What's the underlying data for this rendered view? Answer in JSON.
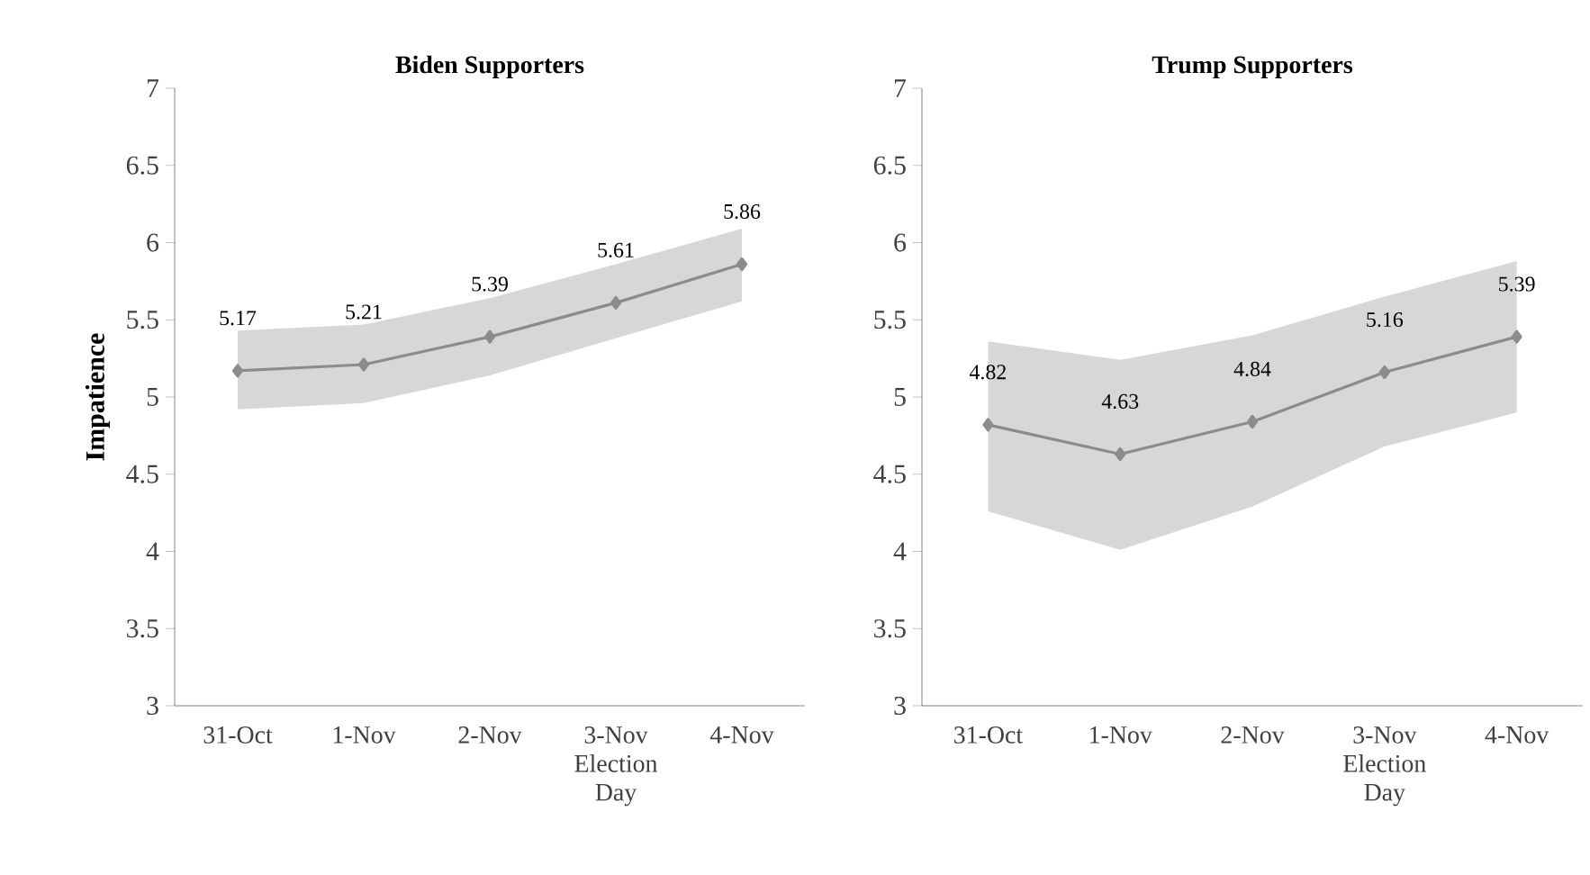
{
  "chart_data": [
    {
      "type": "line",
      "title": "Biden Supporters",
      "ylabel": "Impatience",
      "categories": [
        "31-Oct",
        "1-Nov",
        "2-Nov",
        "3-Nov Election Day",
        "4-Nov"
      ],
      "series": [
        {
          "color": "#8c8c8c",
          "values": [
            5.17,
            5.21,
            5.39,
            5.61,
            5.86
          ],
          "lower": [
            4.92,
            4.96,
            5.14,
            5.38,
            5.62
          ],
          "upper": [
            5.43,
            5.47,
            5.64,
            5.86,
            6.09
          ]
        }
      ],
      "ylim": [
        3,
        7
      ],
      "yticks": [
        3,
        3.5,
        4,
        4.5,
        5,
        5.5,
        6,
        6.5,
        7
      ],
      "marker": "diamond",
      "data_labels": true,
      "grid": false
    },
    {
      "type": "line",
      "title": "Trump Supporters",
      "categories": [
        "31-Oct",
        "1-Nov",
        "2-Nov",
        "3-Nov Election Day",
        "4-Nov"
      ],
      "series": [
        {
          "color": "#8c8c8c",
          "values": [
            4.82,
            4.63,
            4.84,
            5.16,
            5.39
          ],
          "lower": [
            4.26,
            4.01,
            4.29,
            4.68,
            4.9
          ],
          "upper": [
            5.36,
            5.24,
            5.4,
            5.65,
            5.88
          ]
        }
      ],
      "ylim": [
        3,
        7
      ],
      "yticks": [
        3,
        3.5,
        4,
        4.5,
        5,
        5.5,
        6,
        6.5,
        7
      ],
      "marker": "diamond",
      "data_labels": true,
      "grid": false
    }
  ]
}
